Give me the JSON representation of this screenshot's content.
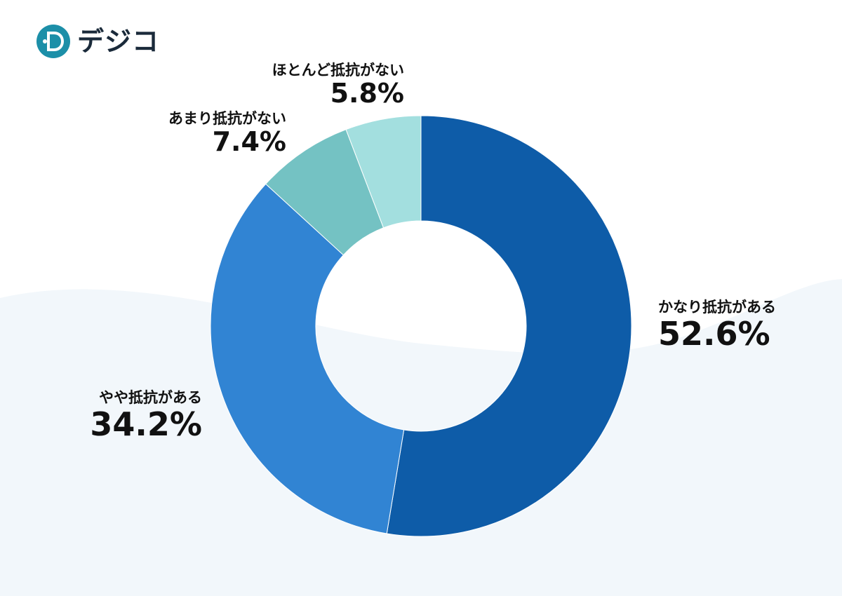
{
  "brand": {
    "name": "デジコ",
    "accent": "#1c8fa8"
  },
  "chart_data": {
    "type": "pie",
    "donut": true,
    "title": "",
    "start_angle_deg": 0,
    "direction": "clockwise",
    "slices": [
      {
        "label": "かなり抵抗がある",
        "value": 52.6,
        "display": "52.6%",
        "color": "#0e5ca8"
      },
      {
        "label": "やや抵抗がある",
        "value": 34.2,
        "display": "34.2%",
        "color": "#3184d3"
      },
      {
        "label": "あまり抵抗がない",
        "value": 7.4,
        "display": "7.4%",
        "color": "#74c2c3"
      },
      {
        "label": "ほとんど抵抗がない",
        "value": 5.8,
        "display": "5.8%",
        "color": "#a3dfdf"
      }
    ],
    "legend": "none"
  }
}
